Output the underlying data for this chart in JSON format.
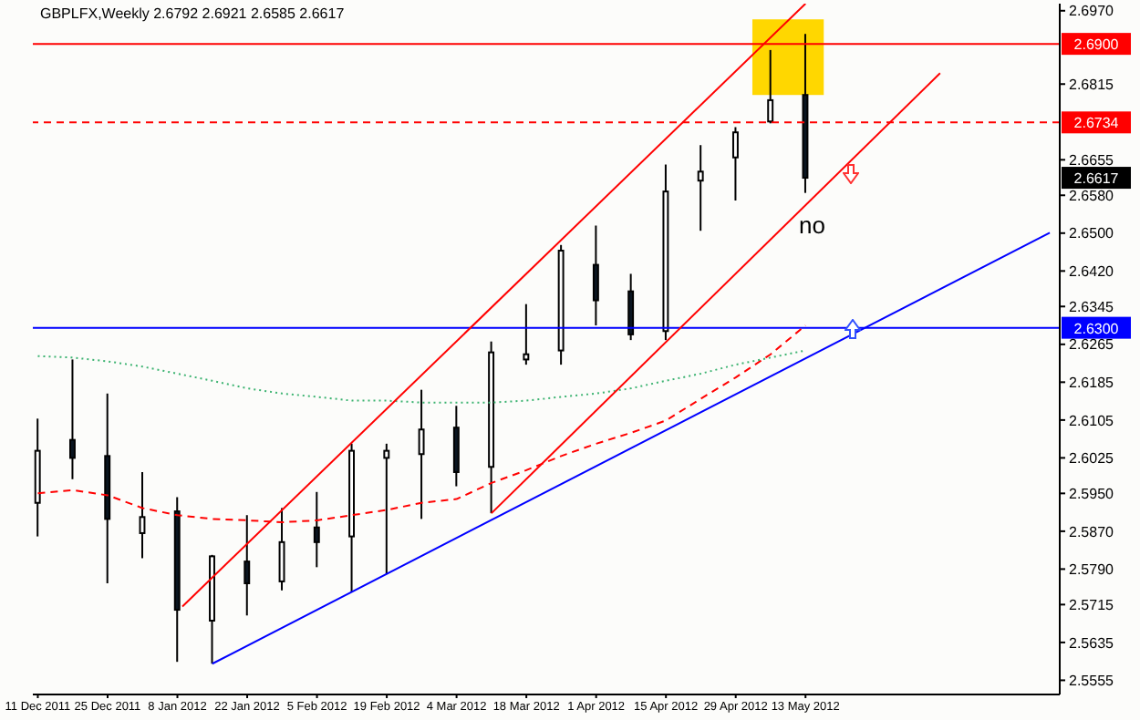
{
  "chart_data": {
    "type": "candlestick",
    "title": "GBPLFX,Weekly  2.6792 2.6921 2.6585 2.6617",
    "x": [
      "2011-12-11",
      "2011-12-18",
      "2011-12-25",
      "2012-01-01",
      "2012-01-08",
      "2012-01-15",
      "2012-01-22",
      "2012-01-29",
      "2012-02-05",
      "2012-02-12",
      "2012-02-19",
      "2012-02-26",
      "2012-03-04",
      "2012-03-11",
      "2012-03-18",
      "2012-03-25",
      "2012-04-01",
      "2012-04-08",
      "2012-04-15",
      "2012-04-22",
      "2012-04-29",
      "2012-05-06",
      "2012-05-13"
    ],
    "ohlc": [
      [
        2.593,
        2.6108,
        2.5859,
        2.604
      ],
      [
        2.6063,
        2.6233,
        2.598,
        2.6025
      ],
      [
        2.6029,
        2.6161,
        2.576,
        2.5896
      ],
      [
        2.5866,
        2.5995,
        2.5813,
        2.59
      ],
      [
        2.5912,
        2.5942,
        2.5594,
        2.5704
      ],
      [
        2.5681,
        2.582,
        2.559,
        2.5817
      ],
      [
        2.5806,
        2.5904,
        2.5692,
        2.576
      ],
      [
        2.5764,
        2.5919,
        2.5745,
        2.5847
      ],
      [
        2.5878,
        2.5953,
        2.5794,
        2.5847
      ],
      [
        2.5859,
        2.6055,
        2.5741,
        2.604
      ],
      [
        2.6025,
        2.6055,
        2.5779,
        2.604
      ],
      [
        2.6033,
        2.6169,
        2.5896,
        2.6085
      ],
      [
        2.6089,
        2.6135,
        2.5965,
        2.5995
      ],
      [
        2.6006,
        2.6271,
        2.5908,
        2.6248
      ],
      [
        2.6233,
        2.635,
        2.6222,
        2.6244
      ],
      [
        2.6252,
        2.6475,
        2.6222,
        2.6463
      ],
      [
        2.6433,
        2.6516,
        2.6305,
        2.6358
      ],
      [
        2.6377,
        2.6414,
        2.6274,
        2.6286
      ],
      [
        2.6293,
        2.6645,
        2.6274,
        2.6588
      ],
      [
        2.6611,
        2.6686,
        2.6505,
        2.663
      ],
      [
        2.666,
        2.6724,
        2.6569,
        2.6713
      ],
      [
        2.6736,
        2.6887,
        2.6732,
        2.6781
      ],
      [
        2.6792,
        2.6921,
        2.6585,
        2.6617
      ]
    ],
    "series": [
      {
        "type": "line",
        "color": "#ff0000",
        "line_style": "dashed",
        "x": [
          "2011-12-11",
          "2011-12-18",
          "2011-12-25",
          "2012-01-01",
          "2012-01-08",
          "2012-01-15",
          "2012-01-22",
          "2012-01-29",
          "2012-02-05",
          "2012-02-12",
          "2012-02-19",
          "2012-02-26",
          "2012-03-04",
          "2012-03-11",
          "2012-03-18",
          "2012-03-25",
          "2012-04-01",
          "2012-04-08",
          "2012-04-15",
          "2012-04-22",
          "2012-04-29",
          "2012-05-06",
          "2012-05-13"
        ],
        "values": [
          2.595,
          2.5957,
          2.5946,
          2.5919,
          2.5904,
          2.5896,
          2.5893,
          2.5889,
          2.5893,
          2.5904,
          2.5915,
          2.593,
          2.5938,
          2.5972,
          2.5999,
          2.6029,
          2.6055,
          2.6078,
          2.6104,
          2.615,
          2.6195,
          2.6244,
          2.6305
        ]
      },
      {
        "type": "line",
        "color": "#3cb371",
        "line_style": "dotted",
        "x": [
          "2011-12-11",
          "2011-12-18",
          "2011-12-25",
          "2012-01-01",
          "2012-01-08",
          "2012-01-15",
          "2012-01-22",
          "2012-01-29",
          "2012-02-05",
          "2012-02-12",
          "2012-02-19",
          "2012-02-26",
          "2012-03-04",
          "2012-03-11",
          "2012-03-18",
          "2012-03-25",
          "2012-04-01",
          "2012-04-08",
          "2012-04-15",
          "2012-04-22",
          "2012-04-29",
          "2012-05-06",
          "2012-05-13"
        ],
        "values": [
          2.624,
          2.6237,
          2.6229,
          2.6218,
          2.6203,
          2.6188,
          2.6172,
          2.6161,
          2.6154,
          2.6146,
          2.6146,
          2.6142,
          2.6142,
          2.6142,
          2.6146,
          2.6154,
          2.6161,
          2.6172,
          2.6188,
          2.6203,
          2.6222,
          2.6237,
          2.6252
        ]
      },
      {
        "type": "line",
        "color": "#ff0000",
        "line_style": "solid",
        "x": [
          "2012-01-09",
          "2012-05-13"
        ],
        "values": [
          2.5711,
          2.6985
        ]
      },
      {
        "type": "line",
        "color": "#ff0000",
        "line_style": "solid",
        "x": [
          "2012-03-11",
          "2012-06-09"
        ],
        "values": [
          2.5908,
          2.6838
        ]
      },
      {
        "type": "line",
        "color": "#0000ff",
        "line_style": "solid",
        "x": [
          "2012-01-15",
          "2012-07-01"
        ],
        "values": [
          2.559,
          2.6501
        ]
      }
    ],
    "xlim": [
      "2011-12-10",
      "2012-07-03"
    ],
    "xticks": [
      {
        "value": "2011-12-11",
        "label": "11 Dec 2011"
      },
      {
        "value": "2011-12-25",
        "label": "25 Dec 2011"
      },
      {
        "value": "2012-01-08",
        "label": "8 Jan 2012"
      },
      {
        "value": "2012-01-22",
        "label": "22 Jan 2012"
      },
      {
        "value": "2012-02-05",
        "label": "5 Feb 2012"
      },
      {
        "value": "2012-02-19",
        "label": "19 Feb 2012"
      },
      {
        "value": "2012-03-04",
        "label": "4 Mar 2012"
      },
      {
        "value": "2012-03-18",
        "label": "18 Mar 2012"
      },
      {
        "value": "2012-04-01",
        "label": "1 Apr 2012"
      },
      {
        "value": "2012-04-15",
        "label": "15 Apr 2012"
      },
      {
        "value": "2012-04-29",
        "label": "29 Apr 2012"
      },
      {
        "value": "2012-05-13",
        "label": "13 May 2012"
      }
    ],
    "ylim": [
      2.5525,
      2.6985
    ],
    "yticks": [
      {
        "value": 2.697,
        "label": "2.6970"
      },
      2.6815,
      2.6655,
      {
        "value": 2.658,
        "label": "2.6580"
      },
      {
        "value": 2.65,
        "label": "2.6500"
      },
      {
        "value": 2.642,
        "label": "2.6420"
      },
      2.6345,
      2.6265,
      2.6185,
      2.6105,
      2.6025,
      {
        "value": 2.595,
        "label": "2.5950"
      },
      {
        "value": 2.587,
        "label": "2.5870"
      },
      {
        "value": 2.579,
        "label": "2.5790"
      },
      2.5715,
      2.5635,
      2.5555
    ],
    "ref_lines": [
      {
        "axis": "y",
        "value": 2.69,
        "label": "2.6900",
        "color": "#ff0000",
        "line_style": "solid"
      },
      {
        "axis": "y",
        "value": 2.6734,
        "label": "2.6734",
        "color": "#ff0000",
        "line_style": "dashed"
      },
      {
        "axis": "y",
        "value": 2.63,
        "label": "2.6300",
        "color": "#0000ff",
        "line_style": "solid"
      }
    ],
    "annotations": [
      {
        "text": "2.6617",
        "y": 2.6617
      },
      "no"
    ]
  }
}
